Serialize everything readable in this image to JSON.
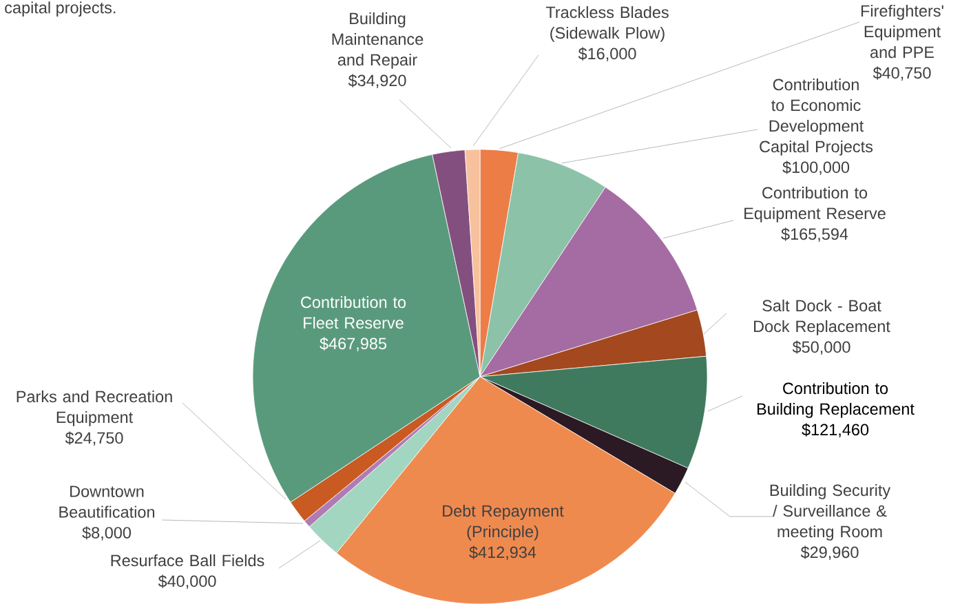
{
  "chart_data": {
    "type": "pie",
    "categories": [
      "Firefighters' Equipment and PPE",
      "Contribution to Economic Development Capital Projects",
      "Contribution to Equipment Reserve",
      "Salt Dock - Boat Dock Replacement",
      "Contribution to Building Replacement",
      "Building Security / Surveillance & meeting Room",
      "Debt Repayment (Principle)",
      "Resurface Ball Fields",
      "Downtown Beautification",
      "Parks and Recreation Equipment",
      "Contribution to Fleet Reserve",
      "Building Maintenance and Repair",
      "Trackless Blades (Sidewalk Plow)"
    ],
    "values": [
      40750,
      100000,
      165594,
      50000,
      121460,
      29960,
      412934,
      40000,
      8000,
      24750,
      467985,
      34920,
      16000
    ],
    "value_labels": [
      "$40,750",
      "$100,000",
      "$165,594",
      "$50,000",
      "$121,460",
      "$29,960",
      "$412,934",
      "$40,000",
      "$8,000",
      "$24,750",
      "$467,985",
      "$34,920",
      "$16,000"
    ],
    "colors": [
      "#ec7d46",
      "#8cc2a8",
      "#a56ba3",
      "#a3481f",
      "#3f7a5e",
      "#2b1a24",
      "#ef8a4f",
      "#a2d6c0",
      "#b07bb5",
      "#c85a22",
      "#5a9a7c",
      "#834f7f",
      "#f8c19d"
    ],
    "annotations": [
      "capital projects."
    ]
  }
}
